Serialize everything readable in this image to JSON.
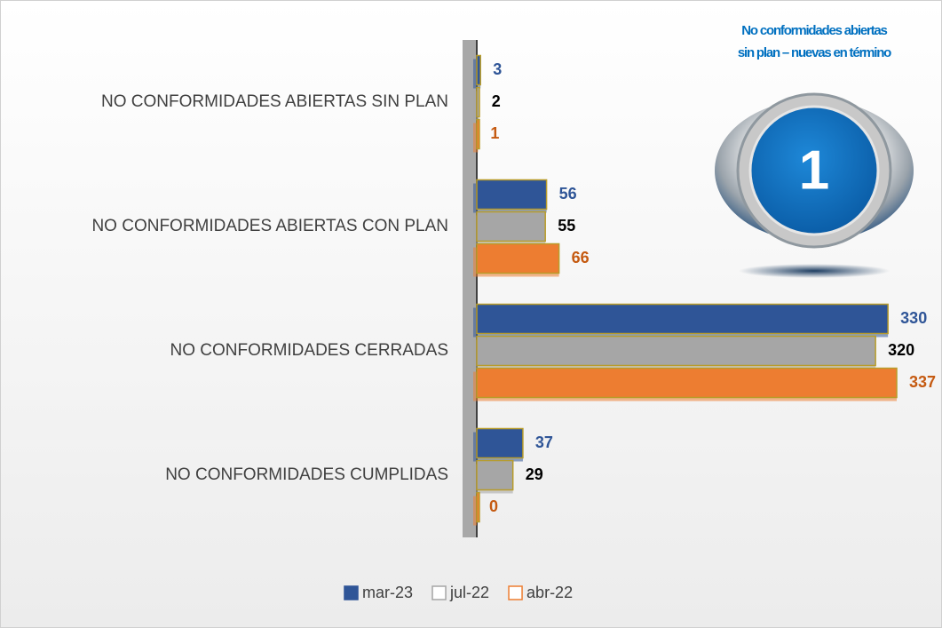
{
  "chart_data": {
    "type": "bar",
    "orientation": "horizontal",
    "categories": [
      "NO CONFORMIDADES ABIERTAS SIN PLAN",
      "NO CONFORMIDADES ABIERTAS CON PLAN",
      "NO CONFORMIDADES CERRADAS",
      "NO CONFORMIDADES CUMPLIDAS"
    ],
    "series": [
      {
        "name": "mar-23",
        "color": "#2f5597",
        "label_color": "#2f5597",
        "values": [
          3,
          56,
          330,
          37
        ]
      },
      {
        "name": "jul-22",
        "color": "#a6a6a6",
        "label_color": "#000000",
        "values": [
          2,
          55,
          320,
          29
        ]
      },
      {
        "name": "abr-22",
        "color": "#ed7d31",
        "label_color": "#c55a11",
        "values": [
          1,
          66,
          337,
          0
        ]
      }
    ],
    "legend": "bottom"
  },
  "badge": {
    "title": [
      "No conformidades abiertas",
      "sin plan – nuevas en término"
    ],
    "value": 1
  }
}
